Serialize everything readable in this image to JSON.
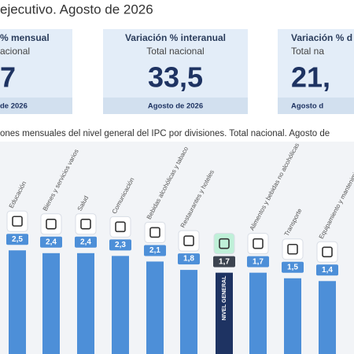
{
  "header": {
    "title": "ejecutivo. Agosto de 2026"
  },
  "cards": [
    {
      "title": "% mensual",
      "subtitle": "acional",
      "value": "7",
      "footer": "de 2026"
    },
    {
      "title": "Variación % interanual",
      "subtitle": "Total nacional",
      "value": "33,5",
      "footer": "Agosto de 2026"
    },
    {
      "title": "Variación % d",
      "subtitle": "Total na",
      "value": "21,",
      "footer": "Agosto d"
    }
  ],
  "chart_data": {
    "type": "bar",
    "title": "ones mensuales del nivel general del IPC por divisiones. Total nacional. Agosto de",
    "categories": [
      "Educación",
      "Bienes y servicios varios",
      "Salud",
      "Comunicación",
      "Bebidas alcohólicas y tabaco",
      "Restaurantes y hoteles",
      "NIVEL GENERAL",
      "Alimentos y bebidas no alcohólicas",
      "Transporte",
      "Equipamiento y mantenimiento del hogar"
    ],
    "values": [
      2.5,
      2.4,
      2.4,
      2.3,
      2.1,
      1.8,
      1.7,
      1.7,
      1.5,
      1.4
    ],
    "value_labels": [
      "2,5",
      "2,4",
      "2,4",
      "2,3",
      "2,1",
      "1,8",
      "1,7",
      "1,7",
      "1,5",
      "1,4"
    ],
    "colors": [
      "#4d8fd8",
      "#4d8fd8",
      "#4d8fd8",
      "#4d8fd8",
      "#4d8fd8",
      "#4d8fd8",
      "#1e3362",
      "#4d8fd8",
      "#4d8fd8",
      "#4d8fd8"
    ]
  }
}
